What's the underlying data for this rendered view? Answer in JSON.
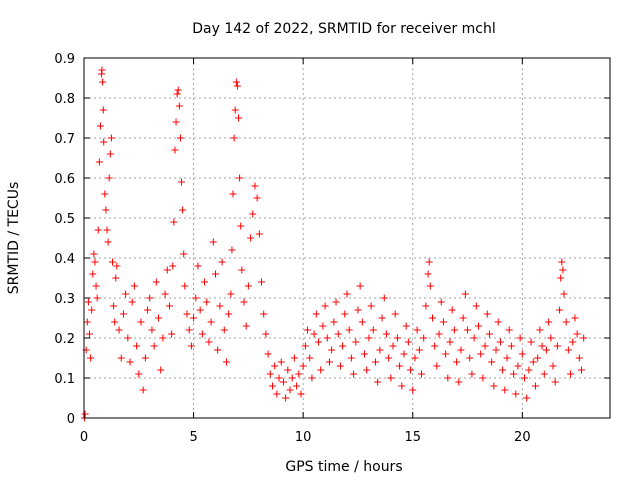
{
  "chart_data": {
    "type": "scatter",
    "title": "Day 142 of 2022, SRMTID for receiver mchl",
    "xlabel": "GPS time / hours",
    "ylabel": "SRMTID / TECUs",
    "xlim": [
      0,
      24
    ],
    "ylim": [
      0,
      0.9
    ],
    "xticks": [
      0,
      5,
      10,
      15,
      20
    ],
    "xtick_labels": [
      "0",
      "5",
      "10",
      "15",
      "20"
    ],
    "yticks": [
      0,
      0.1,
      0.2,
      0.3,
      0.4,
      0.5,
      0.6,
      0.7,
      0.8,
      0.9
    ],
    "ytick_labels": [
      "0",
      "0.1",
      "0.2",
      "0.3",
      "0.4",
      "0.5",
      "0.6",
      "0.7",
      "0.8",
      "0.9"
    ],
    "grid": true,
    "marker": "+",
    "color": "#ff0000",
    "series": [
      {
        "name": "SRMTID",
        "points": [
          [
            0.02,
            0.0
          ],
          [
            0.05,
            0.01
          ],
          [
            0.1,
            0.17
          ],
          [
            0.15,
            0.24
          ],
          [
            0.2,
            0.29
          ],
          [
            0.25,
            0.21
          ],
          [
            0.3,
            0.15
          ],
          [
            0.35,
            0.27
          ],
          [
            0.4,
            0.36
          ],
          [
            0.45,
            0.41
          ],
          [
            0.5,
            0.39
          ],
          [
            0.55,
            0.33
          ],
          [
            0.6,
            0.3
          ],
          [
            0.65,
            0.47
          ],
          [
            0.7,
            0.64
          ],
          [
            0.75,
            0.73
          ],
          [
            0.8,
            0.86
          ],
          [
            0.82,
            0.87
          ],
          [
            0.85,
            0.84
          ],
          [
            0.88,
            0.77
          ],
          [
            0.9,
            0.69
          ],
          [
            0.95,
            0.56
          ],
          [
            1.0,
            0.52
          ],
          [
            1.05,
            0.47
          ],
          [
            1.1,
            0.44
          ],
          [
            1.15,
            0.6
          ],
          [
            1.2,
            0.66
          ],
          [
            1.25,
            0.7
          ],
          [
            1.3,
            0.39
          ],
          [
            1.35,
            0.28
          ],
          [
            1.4,
            0.24
          ],
          [
            1.45,
            0.35
          ],
          [
            1.5,
            0.38
          ],
          [
            1.6,
            0.22
          ],
          [
            1.7,
            0.15
          ],
          [
            1.8,
            0.26
          ],
          [
            1.9,
            0.31
          ],
          [
            2.0,
            0.2
          ],
          [
            2.1,
            0.14
          ],
          [
            2.2,
            0.29
          ],
          [
            2.3,
            0.33
          ],
          [
            2.4,
            0.18
          ],
          [
            2.5,
            0.11
          ],
          [
            2.6,
            0.24
          ],
          [
            2.7,
            0.07
          ],
          [
            2.8,
            0.15
          ],
          [
            2.9,
            0.27
          ],
          [
            3.0,
            0.3
          ],
          [
            3.1,
            0.22
          ],
          [
            3.2,
            0.18
          ],
          [
            3.3,
            0.34
          ],
          [
            3.4,
            0.25
          ],
          [
            3.5,
            0.12
          ],
          [
            3.6,
            0.2
          ],
          [
            3.7,
            0.31
          ],
          [
            3.8,
            0.37
          ],
          [
            3.9,
            0.28
          ],
          [
            4.0,
            0.21
          ],
          [
            4.05,
            0.38
          ],
          [
            4.1,
            0.49
          ],
          [
            4.15,
            0.67
          ],
          [
            4.2,
            0.74
          ],
          [
            4.25,
            0.81
          ],
          [
            4.3,
            0.82
          ],
          [
            4.35,
            0.78
          ],
          [
            4.4,
            0.7
          ],
          [
            4.45,
            0.59
          ],
          [
            4.5,
            0.52
          ],
          [
            4.55,
            0.41
          ],
          [
            4.6,
            0.33
          ],
          [
            4.7,
            0.26
          ],
          [
            4.8,
            0.22
          ],
          [
            4.9,
            0.18
          ],
          [
            5.0,
            0.25
          ],
          [
            5.1,
            0.3
          ],
          [
            5.2,
            0.38
          ],
          [
            5.3,
            0.27
          ],
          [
            5.4,
            0.21
          ],
          [
            5.5,
            0.34
          ],
          [
            5.6,
            0.29
          ],
          [
            5.7,
            0.19
          ],
          [
            5.8,
            0.24
          ],
          [
            5.9,
            0.44
          ],
          [
            6.0,
            0.36
          ],
          [
            6.1,
            0.17
          ],
          [
            6.2,
            0.28
          ],
          [
            6.3,
            0.39
          ],
          [
            6.4,
            0.22
          ],
          [
            6.5,
            0.14
          ],
          [
            6.6,
            0.26
          ],
          [
            6.7,
            0.31
          ],
          [
            6.75,
            0.42
          ],
          [
            6.8,
            0.56
          ],
          [
            6.85,
            0.7
          ],
          [
            6.9,
            0.77
          ],
          [
            6.95,
            0.84
          ],
          [
            7.0,
            0.83
          ],
          [
            7.05,
            0.75
          ],
          [
            7.1,
            0.6
          ],
          [
            7.15,
            0.48
          ],
          [
            7.2,
            0.37
          ],
          [
            7.3,
            0.29
          ],
          [
            7.4,
            0.23
          ],
          [
            7.5,
            0.33
          ],
          [
            7.6,
            0.45
          ],
          [
            7.7,
            0.51
          ],
          [
            7.8,
            0.58
          ],
          [
            7.9,
            0.55
          ],
          [
            8.0,
            0.46
          ],
          [
            8.1,
            0.34
          ],
          [
            8.2,
            0.26
          ],
          [
            8.3,
            0.21
          ],
          [
            8.4,
            0.16
          ],
          [
            8.5,
            0.11
          ],
          [
            8.6,
            0.08
          ],
          [
            8.7,
            0.13
          ],
          [
            8.8,
            0.06
          ],
          [
            8.9,
            0.1
          ],
          [
            9.0,
            0.14
          ],
          [
            9.1,
            0.09
          ],
          [
            9.2,
            0.05
          ],
          [
            9.3,
            0.12
          ],
          [
            9.4,
            0.07
          ],
          [
            9.5,
            0.1
          ],
          [
            9.6,
            0.15
          ],
          [
            9.7,
            0.08
          ],
          [
            9.8,
            0.11
          ],
          [
            9.9,
            0.06
          ],
          [
            10.0,
            0.13
          ],
          [
            10.1,
            0.18
          ],
          [
            10.2,
            0.22
          ],
          [
            10.3,
            0.15
          ],
          [
            10.4,
            0.1
          ],
          [
            10.5,
            0.21
          ],
          [
            10.6,
            0.26
          ],
          [
            10.7,
            0.19
          ],
          [
            10.8,
            0.12
          ],
          [
            10.9,
            0.23
          ],
          [
            11.0,
            0.28
          ],
          [
            11.1,
            0.2
          ],
          [
            11.2,
            0.14
          ],
          [
            11.3,
            0.17
          ],
          [
            11.4,
            0.24
          ],
          [
            11.5,
            0.29
          ],
          [
            11.6,
            0.21
          ],
          [
            11.7,
            0.13
          ],
          [
            11.8,
            0.18
          ],
          [
            11.9,
            0.26
          ],
          [
            12.0,
            0.31
          ],
          [
            12.1,
            0.22
          ],
          [
            12.2,
            0.15
          ],
          [
            12.3,
            0.11
          ],
          [
            12.4,
            0.19
          ],
          [
            12.5,
            0.27
          ],
          [
            12.6,
            0.33
          ],
          [
            12.7,
            0.24
          ],
          [
            12.8,
            0.16
          ],
          [
            12.9,
            0.12
          ],
          [
            13.0,
            0.2
          ],
          [
            13.1,
            0.28
          ],
          [
            13.2,
            0.22
          ],
          [
            13.3,
            0.14
          ],
          [
            13.4,
            0.09
          ],
          [
            13.5,
            0.17
          ],
          [
            13.6,
            0.25
          ],
          [
            13.7,
            0.3
          ],
          [
            13.8,
            0.21
          ],
          [
            13.9,
            0.15
          ],
          [
            14.0,
            0.1
          ],
          [
            14.1,
            0.18
          ],
          [
            14.2,
            0.26
          ],
          [
            14.3,
            0.2
          ],
          [
            14.4,
            0.13
          ],
          [
            14.5,
            0.08
          ],
          [
            14.6,
            0.16
          ],
          [
            14.7,
            0.23
          ],
          [
            14.8,
            0.19
          ],
          [
            14.9,
            0.12
          ],
          [
            15.0,
            0.07
          ],
          [
            15.1,
            0.15
          ],
          [
            15.2,
            0.22
          ],
          [
            15.3,
            0.17
          ],
          [
            15.4,
            0.11
          ],
          [
            15.5,
            0.2
          ],
          [
            15.6,
            0.28
          ],
          [
            15.7,
            0.36
          ],
          [
            15.75,
            0.39
          ],
          [
            15.8,
            0.33
          ],
          [
            15.9,
            0.25
          ],
          [
            16.0,
            0.18
          ],
          [
            16.1,
            0.13
          ],
          [
            16.2,
            0.21
          ],
          [
            16.3,
            0.29
          ],
          [
            16.4,
            0.24
          ],
          [
            16.5,
            0.16
          ],
          [
            16.6,
            0.1
          ],
          [
            16.7,
            0.19
          ],
          [
            16.8,
            0.27
          ],
          [
            16.9,
            0.22
          ],
          [
            17.0,
            0.14
          ],
          [
            17.1,
            0.09
          ],
          [
            17.2,
            0.17
          ],
          [
            17.3,
            0.25
          ],
          [
            17.4,
            0.31
          ],
          [
            17.5,
            0.22
          ],
          [
            17.6,
            0.15
          ],
          [
            17.7,
            0.11
          ],
          [
            17.8,
            0.2
          ],
          [
            17.9,
            0.28
          ],
          [
            18.0,
            0.23
          ],
          [
            18.1,
            0.16
          ],
          [
            18.2,
            0.1
          ],
          [
            18.3,
            0.18
          ],
          [
            18.4,
            0.26
          ],
          [
            18.5,
            0.21
          ],
          [
            18.6,
            0.14
          ],
          [
            18.7,
            0.08
          ],
          [
            18.8,
            0.17
          ],
          [
            18.9,
            0.24
          ],
          [
            19.0,
            0.19
          ],
          [
            19.1,
            0.12
          ],
          [
            19.2,
            0.07
          ],
          [
            19.3,
            0.15
          ],
          [
            19.4,
            0.22
          ],
          [
            19.5,
            0.18
          ],
          [
            19.6,
            0.11
          ],
          [
            19.7,
            0.06
          ],
          [
            19.8,
            0.13
          ],
          [
            19.9,
            0.2
          ],
          [
            20.0,
            0.16
          ],
          [
            20.1,
            0.1
          ],
          [
            20.2,
            0.05
          ],
          [
            20.3,
            0.12
          ],
          [
            20.4,
            0.19
          ],
          [
            20.5,
            0.14
          ],
          [
            20.6,
            0.08
          ],
          [
            20.7,
            0.15
          ],
          [
            20.8,
            0.22
          ],
          [
            20.9,
            0.18
          ],
          [
            21.0,
            0.11
          ],
          [
            21.1,
            0.17
          ],
          [
            21.2,
            0.24
          ],
          [
            21.3,
            0.2
          ],
          [
            21.4,
            0.13
          ],
          [
            21.5,
            0.09
          ],
          [
            21.6,
            0.18
          ],
          [
            21.7,
            0.27
          ],
          [
            21.75,
            0.35
          ],
          [
            21.8,
            0.39
          ],
          [
            21.85,
            0.37
          ],
          [
            21.9,
            0.31
          ],
          [
            22.0,
            0.24
          ],
          [
            22.1,
            0.17
          ],
          [
            22.2,
            0.11
          ],
          [
            22.3,
            0.19
          ],
          [
            22.4,
            0.25
          ],
          [
            22.5,
            0.21
          ],
          [
            22.6,
            0.15
          ],
          [
            22.7,
            0.12
          ],
          [
            22.8,
            0.2
          ]
        ]
      }
    ]
  }
}
